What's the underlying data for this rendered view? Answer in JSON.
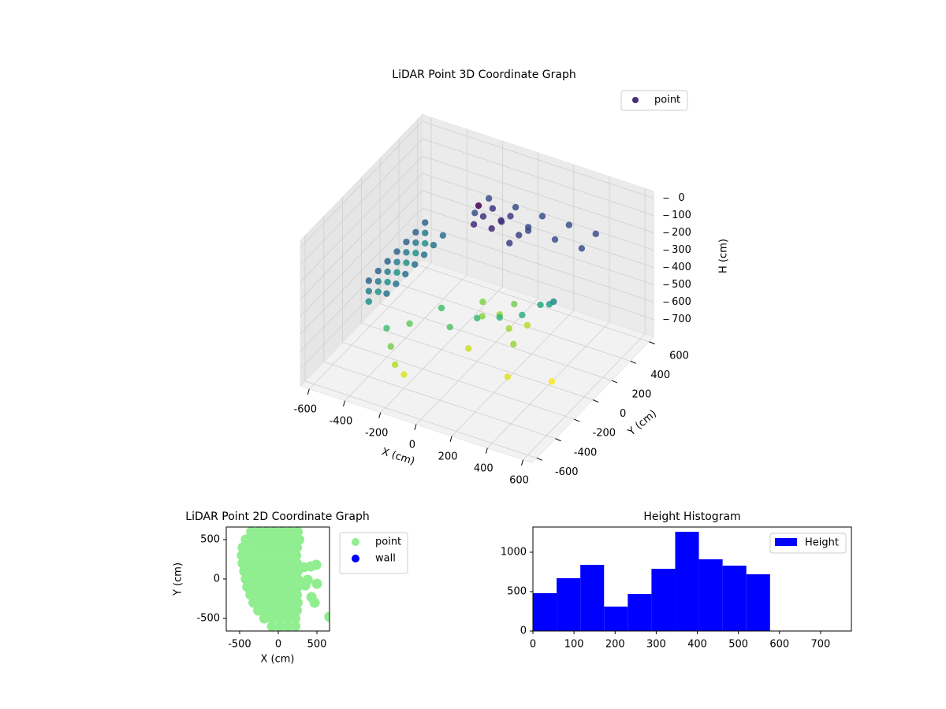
{
  "chart_data": [
    {
      "type": "scatter3d",
      "title": "LiDAR Point 3D Coordinate Graph",
      "xlabel": "X (cm)",
      "ylabel": "Y (cm)",
      "zlabel": "H (cm)",
      "colormap": "viridis",
      "legend": "upper right",
      "grid": true,
      "xlim": [
        -650,
        650
      ],
      "ylim": [
        -650,
        650
      ],
      "zlim": [
        800,
        -40
      ],
      "xticks": [
        -600,
        -400,
        -200,
        0,
        200,
        400,
        600
      ],
      "yticks": [
        -600,
        -400,
        -200,
        0,
        200,
        400,
        600
      ],
      "zticks": [
        0,
        100,
        200,
        300,
        400,
        500,
        600,
        700
      ],
      "series": [
        {
          "name": "point",
          "color": "#472d7b",
          "x": [
            -450,
            -450,
            -450,
            -450,
            -450,
            -450,
            -450,
            -450,
            -450,
            -450,
            -450,
            -450,
            -450,
            -450,
            -450,
            -450,
            -450,
            -450,
            -450,
            -450,
            -450,
            -350,
            -350,
            -350,
            -350,
            -350,
            -350,
            -350,
            -350,
            -300,
            -250,
            -200,
            -250,
            -250,
            -100,
            -100,
            50,
            50,
            200,
            200,
            350,
            350,
            -150,
            -150,
            -150,
            -50,
            -50,
            -50,
            50,
            50,
            50,
            -150,
            10,
            100,
            -50,
            50,
            150,
            -100,
            -200,
            -100,
            0,
            100,
            200,
            -300,
            250,
            -19,
            190,
            435,
            300,
            350,
            250
          ],
          "y": [
            -300,
            -300,
            -300,
            -200,
            -200,
            -200,
            -100,
            -100,
            -100,
            0,
            0,
            0,
            100,
            100,
            100,
            200,
            200,
            200,
            300,
            300,
            300,
            -300,
            -200,
            -100,
            0,
            100,
            200,
            300,
            -300,
            -350,
            -400,
            -400,
            450,
            600,
            450,
            600,
            450,
            600,
            450,
            600,
            450,
            600,
            250,
            350,
            450,
            250,
            350,
            450,
            250,
            350,
            450,
            300,
            221,
            150,
            150,
            300,
            250,
            250,
            0,
            -100,
            0,
            50,
            100,
            -150,
            200,
            -57,
            26,
            -30,
            200,
            150,
            -150
          ],
          "z": [
            320,
            380,
            440,
            320,
            380,
            440,
            320,
            380,
            440,
            320,
            380,
            440,
            320,
            380,
            440,
            320,
            380,
            440,
            320,
            380,
            440,
            360,
            360,
            360,
            360,
            360,
            360,
            360,
            560,
            620,
            680,
            720,
            280,
            280,
            280,
            280,
            280,
            280,
            280,
            280,
            280,
            280,
            200,
            210,
            220,
            190,
            200,
            230,
            240,
            250,
            260,
            120,
            650,
            660,
            640,
            620,
            680,
            630,
            560,
            580,
            550,
            540,
            520,
            600,
            500,
            700,
            650,
            750,
            480,
            420,
            720
          ]
        }
      ]
    },
    {
      "type": "scatter",
      "title": "LiDAR Point 2D Coordinate Graph",
      "xlabel": "X (cm)",
      "ylabel": "Y (cm)",
      "legend": "outside right",
      "xlim": [
        -673,
        663
      ],
      "ylim": [
        -660,
        660
      ],
      "xticks": [
        -500,
        0,
        500
      ],
      "yticks": [
        -500,
        0,
        500
      ],
      "series": [
        {
          "name": "point",
          "color": "#90ee90",
          "x": [
            -350,
            -250,
            -150,
            -50,
            50,
            150,
            250,
            -420,
            -320,
            -220,
            -120,
            -20,
            80,
            180,
            270,
            -460,
            -360,
            -260,
            -160,
            -60,
            40,
            140,
            240,
            -470,
            -370,
            -270,
            -170,
            -70,
            30,
            130,
            230,
            -460,
            -360,
            -260,
            -160,
            -60,
            40,
            140,
            240,
            -440,
            -340,
            -240,
            -140,
            -40,
            60,
            160,
            250,
            -420,
            -320,
            -220,
            -120,
            -20,
            80,
            180,
            250,
            -400,
            -300,
            -200,
            -100,
            0,
            100,
            200,
            250,
            -360,
            -260,
            -160,
            -60,
            40,
            140,
            240,
            -320,
            -220,
            -120,
            -20,
            80,
            180,
            250,
            -260,
            -160,
            -60,
            40,
            140,
            240,
            -180,
            -80,
            20,
            120,
            220,
            -80,
            20,
            120,
            220,
            300,
            350,
            420,
            490,
            500,
            430,
            470,
            660,
            330,
            380
          ],
          "y": [
            600,
            600,
            600,
            600,
            600,
            600,
            600,
            500,
            500,
            500,
            500,
            500,
            500,
            500,
            500,
            400,
            400,
            400,
            400,
            400,
            400,
            400,
            400,
            300,
            300,
            300,
            300,
            300,
            300,
            300,
            300,
            200,
            200,
            200,
            200,
            200,
            200,
            200,
            200,
            100,
            100,
            100,
            100,
            100,
            100,
            100,
            100,
            0,
            0,
            0,
            0,
            0,
            0,
            0,
            0,
            -100,
            -100,
            -100,
            -100,
            -100,
            -100,
            -100,
            -100,
            -200,
            -200,
            -200,
            -200,
            -200,
            -200,
            -200,
            -300,
            -300,
            -300,
            -300,
            -300,
            -300,
            -300,
            -400,
            -400,
            -400,
            -400,
            -400,
            -400,
            -500,
            -500,
            -500,
            -500,
            -500,
            -600,
            -600,
            -600,
            -600,
            -50,
            -80,
            160,
            180,
            -60,
            -230,
            -300,
            -480,
            150,
            -10
          ]
        },
        {
          "name": "wall",
          "color": "#0000ff",
          "x": [],
          "y": []
        }
      ]
    },
    {
      "type": "histogram",
      "title": "Height Histogram",
      "legend": "upper right",
      "xlim": [
        0,
        775
      ],
      "ylim": [
        0,
        1320
      ],
      "xticks": [
        0,
        100,
        200,
        300,
        400,
        500,
        600,
        700
      ],
      "yticks": [
        0,
        500,
        1000
      ],
      "bins": [
        0,
        57.7,
        115.4,
        173.1,
        230.8,
        288.5,
        346.2,
        403.9,
        461.6,
        519.3,
        577
      ],
      "series": [
        {
          "name": "Height",
          "color": "#0000ff",
          "values": [
            480,
            670,
            840,
            310,
            470,
            790,
            1260,
            910,
            830,
            720
          ]
        }
      ]
    }
  ]
}
